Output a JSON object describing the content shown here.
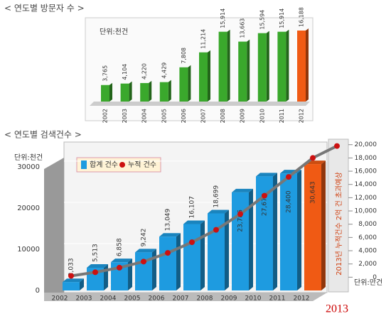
{
  "chart_data": [
    {
      "type": "bar",
      "title": "< 연도별 방문자 수 >",
      "unit_label": "단위:천건",
      "categories": [
        "2002",
        "2003",
        "2004",
        "2005",
        "2006",
        "2007",
        "2008",
        "2009",
        "2010",
        "2011",
        "2012"
      ],
      "values": [
        3765,
        4104,
        4220,
        4429,
        7808,
        11214,
        15914,
        13663,
        15594,
        15914,
        16188
      ],
      "value_labels": [
        "3,765",
        "4,104",
        "4,220",
        "4,429",
        "7,808",
        "11,214",
        "15,914",
        "13,663",
        "15,594",
        "15,914",
        "16,188"
      ],
      "colors": [
        "#3aa82c",
        "#3aa82c",
        "#3aa82c",
        "#3aa82c",
        "#3aa82c",
        "#3aa82c",
        "#3aa82c",
        "#3aa82c",
        "#3aa82c",
        "#3aa82c",
        "#f05a14"
      ]
    },
    {
      "type": "bar_line",
      "title": "< 연도별 검색건수 >",
      "unit_label": "단위:천건",
      "unit_label_y2": "단위:만건",
      "categories": [
        "2002",
        "2003",
        "2004",
        "2005",
        "2006",
        "2007",
        "2008",
        "2009",
        "2010",
        "2011",
        "2012",
        "2013"
      ],
      "ylim": [
        0,
        36000
      ],
      "yticks": [
        0,
        10000,
        20000,
        30000
      ],
      "y2lim": [
        -2000,
        20400
      ],
      "y2ticks": [
        0,
        {
          "value": 2000,
          "label": "2,000"
        },
        {
          "value": 4000,
          "label": "4,000"
        },
        {
          "value": 6000,
          "label": "6,000"
        },
        {
          "value": 8000,
          "label": "8,000"
        },
        {
          "value": 10000,
          "label": "10,000"
        },
        {
          "value": 12000,
          "label": "12,000"
        },
        {
          "value": 14000,
          "label": "14,000"
        },
        {
          "value": 16000,
          "label": "16,000"
        },
        {
          "value": 18000,
          "label": "18,000"
        },
        {
          "value": 20000,
          "label": "20,000"
        }
      ],
      "grid": true,
      "series": [
        {
          "name": "합계 건수",
          "color": "#1e9be0",
          "values": [
            2033,
            5513,
            6858,
            9242,
            13049,
            16107,
            18699,
            23786,
            27676,
            28400,
            30643,
            null
          ],
          "value_labels": [
            "2,033",
            "5,513",
            "6,858",
            "9,242",
            "13,049",
            "16,107",
            "18,699",
            "23,786",
            "27,676",
            "28,400",
            "30,643",
            null
          ],
          "colors": [
            "#1e9be0",
            "#1e9be0",
            "#1e9be0",
            "#1e9be0",
            "#1e9be0",
            "#1e9be0",
            "#1e9be0",
            "#1e9be0",
            "#1e9be0",
            "#1e9be0",
            "#f05a14",
            null
          ]
        },
        {
          "name": "누적 건수",
          "color": "#cc1111",
          "axis": "y2",
          "values": [
            200,
            750,
            1440,
            2360,
            3670,
            5280,
            7150,
            9530,
            12300,
            15140,
            18000,
            19800
          ]
        }
      ],
      "annotation": "2013년 누적건수 2억 건 초과예상"
    }
  ]
}
